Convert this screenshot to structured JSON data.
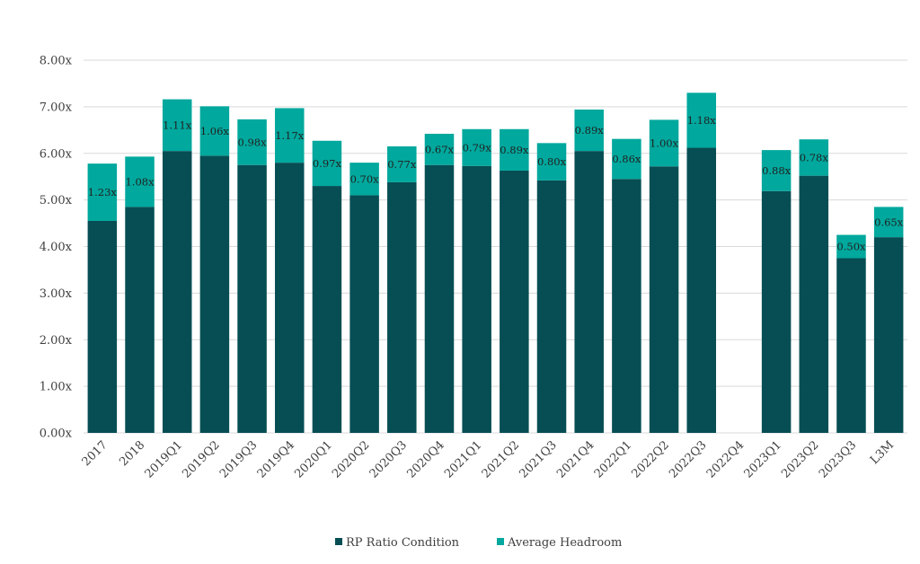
{
  "chart_data": {
    "type": "bar",
    "stacked": true,
    "categories": [
      "2017",
      "2018",
      "2019Q1",
      "2019Q2",
      "2019Q3",
      "2019Q4",
      "2020Q1",
      "2020Q2",
      "2020Q3",
      "2020Q4",
      "2021Q1",
      "2021Q2",
      "2021Q3",
      "2021Q4",
      "2022Q1",
      "2022Q2",
      "2022Q3",
      "2022Q4",
      "2023Q1",
      "2023Q2",
      "2023Q3",
      "L3M"
    ],
    "series": [
      {
        "name": "RP Ratio Condition",
        "color": "#064e54",
        "values": [
          4.55,
          4.85,
          6.05,
          5.95,
          5.75,
          5.8,
          5.3,
          5.1,
          5.38,
          5.75,
          5.73,
          5.63,
          5.42,
          6.05,
          5.45,
          5.72,
          6.12,
          0,
          5.19,
          5.52,
          3.75,
          4.2
        ]
      },
      {
        "name": "Average Headroom",
        "color": "#00a89d",
        "values": [
          1.23,
          1.08,
          1.11,
          1.06,
          0.98,
          1.17,
          0.97,
          0.7,
          0.77,
          0.67,
          0.79,
          0.89,
          0.8,
          0.89,
          0.86,
          1.0,
          1.18,
          0,
          0.88,
          0.78,
          0.5,
          0.65
        ]
      }
    ],
    "data_labels": [
      "1.23x",
      "1.08x",
      "1.11x",
      "1.06x",
      "0.98x",
      "1.17x",
      "0.97x",
      "0.70x",
      "0.77x",
      "0.67x",
      "0.79x",
      "0.89x",
      "0.80x",
      "0.89x",
      "0.86x",
      "1.00x",
      "1.18x",
      "",
      "0.88x",
      "0.78x",
      "0.50x",
      "0.65x"
    ],
    "y_ticks": [
      "0.00x",
      "1.00x",
      "2.00x",
      "3.00x",
      "4.00x",
      "5.00x",
      "6.00x",
      "7.00x",
      "8.00x"
    ],
    "ylim": [
      0,
      8
    ],
    "grid": true,
    "legend_position": "bottom"
  }
}
